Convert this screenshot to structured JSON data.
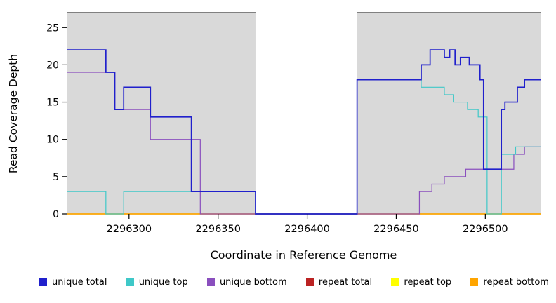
{
  "figure": {
    "xlabel": "Coordinate in Reference Genome",
    "ylabel": "Read Coverage Depth"
  },
  "chart_data": {
    "type": "line",
    "step": "after",
    "title": "",
    "xlabel": "Coordinate in Reference Genome",
    "ylabel": "Read Coverage Depth",
    "xlim": [
      2296265,
      2296531
    ],
    "ylim": [
      0,
      27
    ],
    "xticks": [
      2296300,
      2296350,
      2296400,
      2296450,
      2296500
    ],
    "yticks": [
      0,
      5,
      10,
      15,
      20,
      25
    ],
    "grid": false,
    "plot_background": "#d9d9d9",
    "masked_region": {
      "from": 2296371,
      "to": 2296428
    },
    "legend_position": "bottom",
    "legend": [
      {
        "label": "unique total",
        "color": "#2020cc"
      },
      {
        "label": "unique top",
        "color": "#3fc8c8"
      },
      {
        "label": "unique bottom",
        "color": "#8a4fbe"
      },
      {
        "label": "repeat total",
        "color": "#bb2222"
      },
      {
        "label": "repeat top",
        "color": "#ffff00"
      },
      {
        "label": "repeat bottom",
        "color": "#ffa500"
      }
    ],
    "series": [
      {
        "name": "repeat total",
        "color": "#bb2222",
        "lw": 1.2,
        "points": [
          [
            2296265,
            0
          ],
          [
            2296531,
            0
          ]
        ]
      },
      {
        "name": "repeat top",
        "color": "#ffff00",
        "lw": 1.2,
        "points": [
          [
            2296265,
            0
          ],
          [
            2296531,
            0
          ]
        ]
      },
      {
        "name": "repeat bottom",
        "color": "#ffa500",
        "lw": 1.4,
        "points": [
          [
            2296265,
            0
          ],
          [
            2296531,
            0
          ]
        ]
      },
      {
        "name": "unique bottom",
        "color": "#8a4fbe",
        "lw": 1.2,
        "points": [
          [
            2296265,
            19
          ],
          [
            2296292,
            14
          ],
          [
            2296312,
            10
          ],
          [
            2296340,
            0
          ],
          [
            2296463,
            3
          ],
          [
            2296470,
            4
          ],
          [
            2296477,
            5
          ],
          [
            2296489,
            6
          ],
          [
            2296516,
            8
          ],
          [
            2296522,
            9
          ]
        ]
      },
      {
        "name": "unique top",
        "color": "#3fc8c8",
        "lw": 1.2,
        "points": [
          [
            2296265,
            3
          ],
          [
            2296287,
            0
          ],
          [
            2296297,
            3
          ],
          [
            2296371,
            0
          ],
          [
            2296428,
            18
          ],
          [
            2296464,
            17
          ],
          [
            2296477,
            16
          ],
          [
            2296482,
            15
          ],
          [
            2296490,
            14
          ],
          [
            2296496,
            13
          ],
          [
            2296501,
            0
          ],
          [
            2296509,
            8
          ],
          [
            2296517,
            9
          ]
        ]
      },
      {
        "name": "unique total",
        "color": "#2020cc",
        "lw": 1.7,
        "points": [
          [
            2296265,
            22
          ],
          [
            2296287,
            19
          ],
          [
            2296292,
            14
          ],
          [
            2296297,
            17
          ],
          [
            2296312,
            13
          ],
          [
            2296335,
            3
          ],
          [
            2296371,
            0
          ],
          [
            2296428,
            18
          ],
          [
            2296464,
            20
          ],
          [
            2296469,
            22
          ],
          [
            2296477,
            21
          ],
          [
            2296480,
            22
          ],
          [
            2296483,
            20
          ],
          [
            2296486,
            21
          ],
          [
            2296491,
            20
          ],
          [
            2296497,
            18
          ],
          [
            2296499,
            6
          ],
          [
            2296509,
            14
          ],
          [
            2296511,
            15
          ],
          [
            2296518,
            17
          ],
          [
            2296522,
            18
          ]
        ]
      }
    ]
  }
}
